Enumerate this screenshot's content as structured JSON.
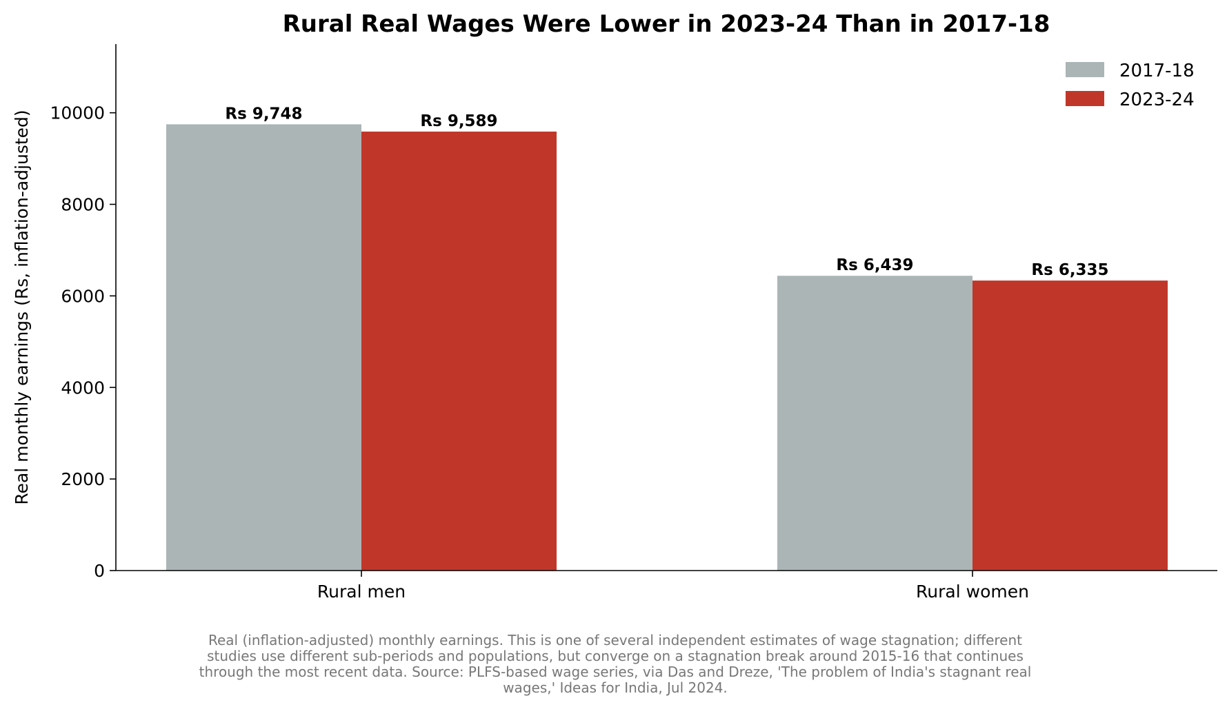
{
  "chart_data": {
    "type": "bar",
    "title": "Rural Real Wages Were Lower in 2023-24 Than in 2017-18",
    "xlabel": "",
    "ylabel": "Real monthly earnings (Rs, inflation-adjusted)",
    "categories": [
      "Rural men",
      "Rural women"
    ],
    "series": [
      {
        "name": "2017-18",
        "color": "#abb5b6",
        "values": [
          9748,
          6439
        ],
        "labels": [
          "Rs 9,748",
          "Rs 6,439"
        ]
      },
      {
        "name": "2023-24",
        "color": "#c0372a",
        "values": [
          9589,
          6335
        ],
        "labels": [
          "Rs 9,589",
          "Rs 6,335"
        ]
      }
    ],
    "ylim": [
      0,
      11500
    ],
    "yticks": [
      0,
      2000,
      4000,
      6000,
      8000,
      10000
    ],
    "ytick_labels": [
      "0",
      "2000",
      "4000",
      "6000",
      "8000",
      "10000"
    ],
    "grid": false,
    "legend_position": "top-right",
    "footnote": [
      "Real (inflation-adjusted) monthly earnings. This is one of several independent estimates of wage stagnation; different",
      "studies use different sub-periods and populations, but converge on a stagnation break around 2015-16 that continues",
      "through the most recent data. Source: PLFS-based wage series, via Das and Dreze, 'The problem of India's stagnant real",
      "wages,' Ideas for India, Jul 2024."
    ]
  }
}
